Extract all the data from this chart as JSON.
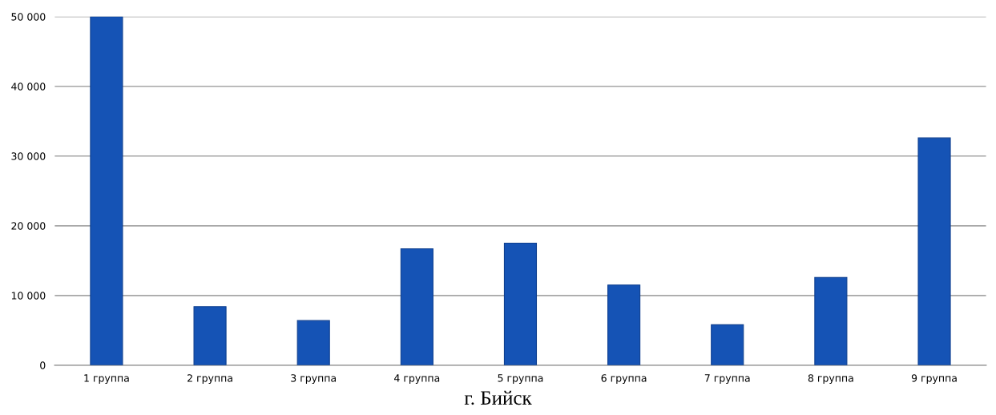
{
  "chart_data": {
    "type": "bar",
    "categories": [
      "1 группа",
      "2 группа",
      "3 группа",
      "4 группа",
      "5 группа",
      "6 группа",
      "7 группа",
      "8 группа",
      "9 группа"
    ],
    "values": [
      50000,
      8400,
      6400,
      16700,
      17500,
      11500,
      5800,
      12600,
      32600
    ],
    "color": "#1553b5",
    "ylim": [
      0,
      50000
    ],
    "yticks": [
      0,
      {
        "value": 10000,
        "label": "10 000"
      },
      {
        "value": 20000,
        "label": "20 000"
      },
      {
        "value": 30000,
        "label": "30 000"
      },
      {
        "value": 40000,
        "label": "40 000"
      },
      {
        "value": 50000,
        "label": "50 000"
      }
    ],
    "grid": "y",
    "annotations": [
      "г. Бийск"
    ]
  }
}
